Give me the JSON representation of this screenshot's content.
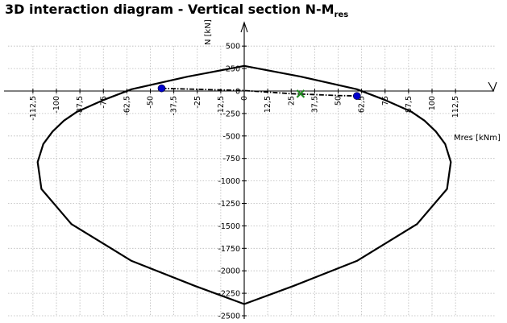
{
  "title": {
    "main": "3D interaction diagram - Vertical section N-M",
    "sub": "res"
  },
  "chart_data": {
    "type": "line",
    "xlabel": "Mres [kNm]",
    "ylabel": "N [kN]",
    "xlim": [
      -112.5,
      112.5
    ],
    "ylim": [
      -2500,
      500
    ],
    "grid": true,
    "x_ticks": [
      "-112,5",
      "-100",
      "-87,5",
      "-75",
      "-62,5",
      "-50",
      "-37,5",
      "-25",
      "-12,5",
      "0",
      "12,5",
      "25",
      "37,5",
      "50",
      "62,5",
      "75",
      "87,5",
      "100",
      "112,5"
    ],
    "x_tick_values": [
      -112.5,
      -100,
      -87.5,
      -75,
      -62.5,
      -50,
      -37.5,
      -25,
      -12.5,
      0,
      12.5,
      25,
      37.5,
      50,
      62.5,
      75,
      87.5,
      100,
      112.5
    ],
    "y_ticks": [
      "500",
      "250",
      "0",
      "-250",
      "-500",
      "-750",
      "-1000",
      "-1250",
      "-1500",
      "-1750",
      "-2000",
      "-2250",
      "-2500"
    ],
    "y_tick_values": [
      500,
      250,
      0,
      -250,
      -500,
      -750,
      -1000,
      -1250,
      -1500,
      -1750,
      -2000,
      -2250,
      -2500
    ],
    "series": [
      {
        "style": "solid",
        "color": "#000000",
        "points": [
          [
            0,
            280
          ],
          [
            30,
            160
          ],
          [
            60,
            20
          ],
          [
            75,
            -100
          ],
          [
            89,
            -230
          ],
          [
            96,
            -330
          ],
          [
            102,
            -450
          ],
          [
            107,
            -590
          ],
          [
            110,
            -790
          ],
          [
            108,
            -1090
          ],
          [
            92,
            -1480
          ],
          [
            60,
            -1890
          ],
          [
            26,
            -2170
          ],
          [
            0,
            -2370
          ],
          [
            -26,
            -2170
          ],
          [
            -60,
            -1890
          ],
          [
            -92,
            -1480
          ],
          [
            -108,
            -1090
          ],
          [
            -110,
            -790
          ],
          [
            -107,
            -590
          ],
          [
            -102,
            -450
          ],
          [
            -96,
            -330
          ],
          [
            -89,
            -230
          ],
          [
            -75,
            -100
          ],
          [
            -60,
            20
          ],
          [
            -30,
            160
          ],
          [
            0,
            280
          ]
        ]
      },
      {
        "style": "dash-dot",
        "color": "#000000",
        "points": [
          [
            -44,
            30
          ],
          [
            0,
            5
          ],
          [
            25,
            -30
          ],
          [
            50,
            -50
          ],
          [
            60,
            -55
          ]
        ]
      }
    ],
    "markers": [
      {
        "shape": "circle",
        "color": "#0000cc",
        "x": -44,
        "y": 30
      },
      {
        "shape": "circle",
        "color": "#0000cc",
        "x": 60,
        "y": -55
      },
      {
        "shape": "cross",
        "color": "#228b22",
        "x": 30,
        "y": -30
      }
    ]
  }
}
